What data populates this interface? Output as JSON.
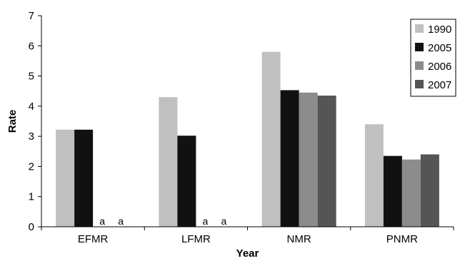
{
  "chart_data": {
    "type": "bar",
    "categories": [
      "EFMR",
      "LFMR",
      "NMR",
      "PNMR"
    ],
    "series": [
      {
        "name": "1990",
        "color": "#c0c0c0",
        "values": [
          3.22,
          4.3,
          5.8,
          3.4
        ]
      },
      {
        "name": "2005",
        "color": "#111111",
        "values": [
          3.22,
          3.02,
          4.53,
          2.35
        ]
      },
      {
        "name": "2006",
        "color": "#8c8c8c",
        "values": [
          null,
          null,
          4.45,
          2.23
        ]
      },
      {
        "name": "2007",
        "color": "#555555",
        "values": [
          null,
          null,
          4.35,
          2.4
        ]
      }
    ],
    "annotations": [
      {
        "category": "EFMR",
        "series": "2006",
        "text": "a"
      },
      {
        "category": "EFMR",
        "series": "2007",
        "text": "a"
      },
      {
        "category": "LFMR",
        "series": "2006",
        "text": "a"
      },
      {
        "category": "LFMR",
        "series": "2007",
        "text": "a"
      }
    ],
    "xlabel": "Year",
    "ylabel": "Rate",
    "ylim": [
      0,
      7
    ],
    "yticks": [
      0,
      1,
      2,
      3,
      4,
      5,
      6,
      7
    ],
    "grid": false,
    "legend_position": "top-right"
  }
}
